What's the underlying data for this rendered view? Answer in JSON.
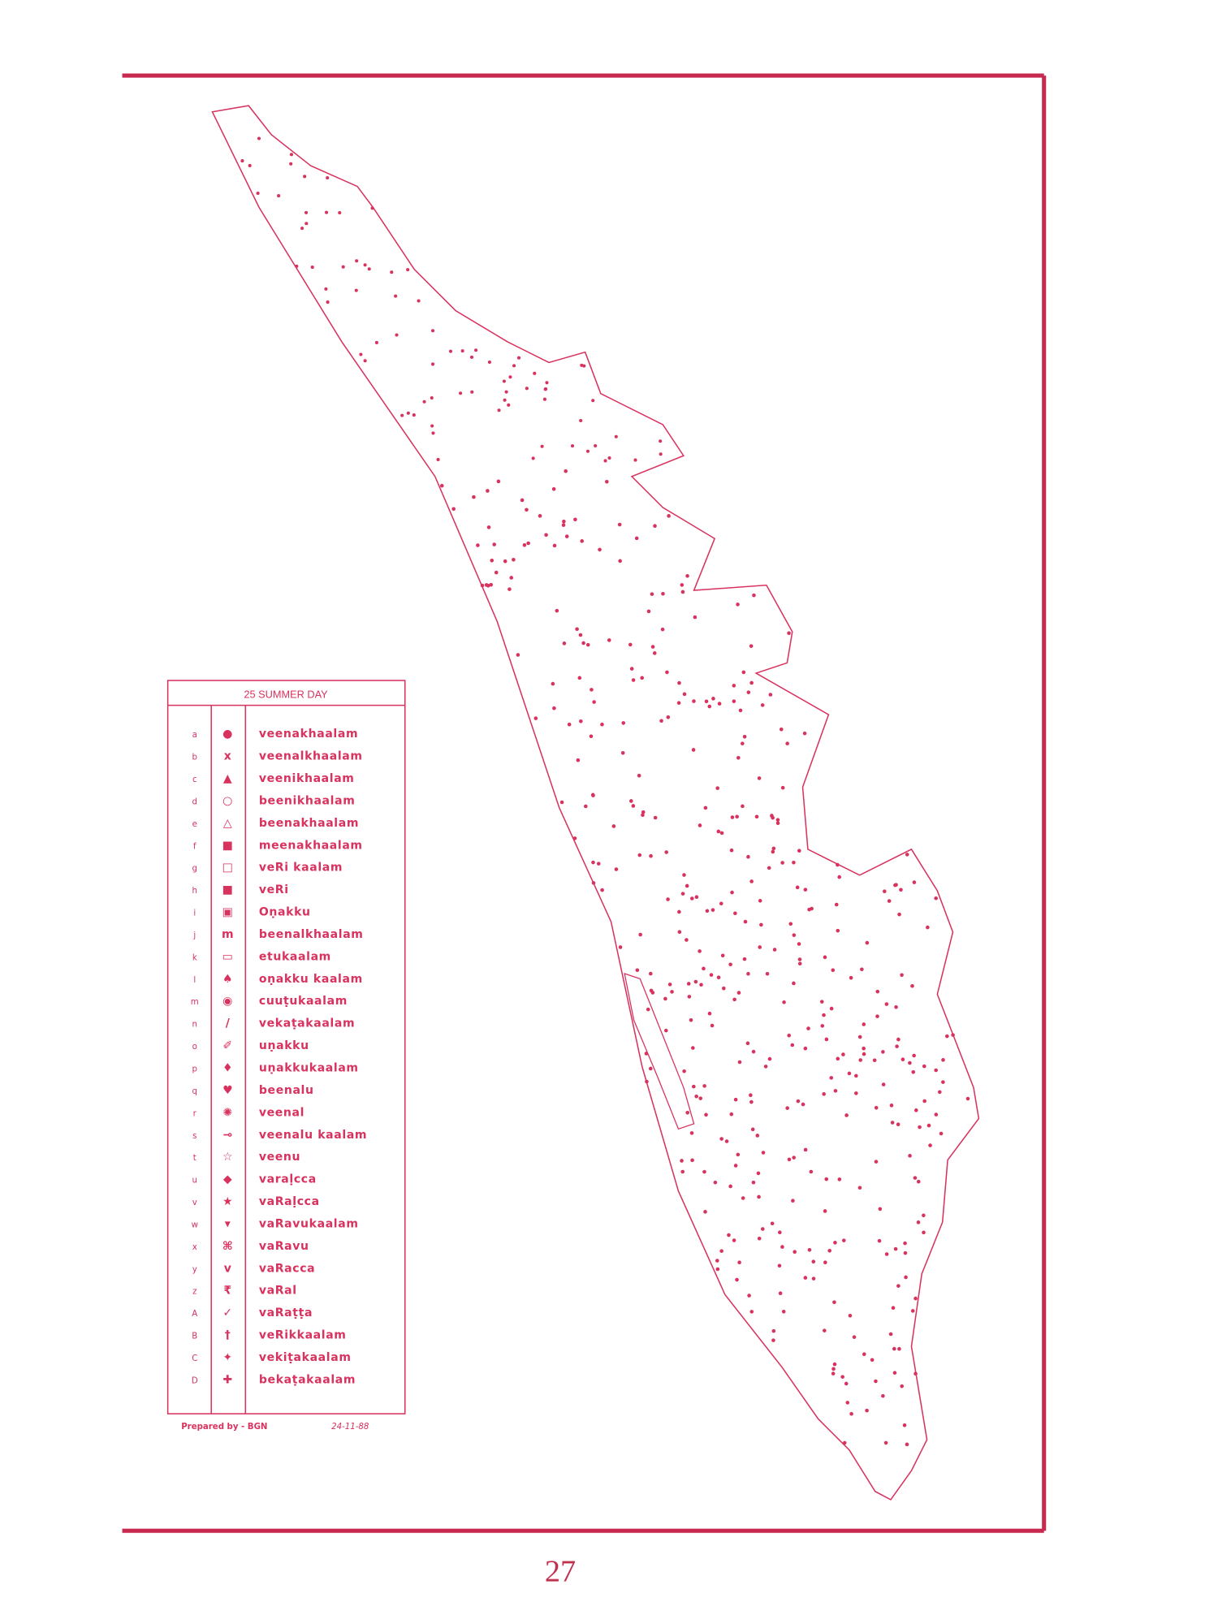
{
  "legend": {
    "title": "25 SUMMER DAY",
    "rows": [
      {
        "code": "a",
        "symbol": "●",
        "term": "veenakhaalam"
      },
      {
        "code": "b",
        "symbol": "x",
        "term": "veenalkhaalam"
      },
      {
        "code": "c",
        "symbol": "▲",
        "term": "veenikhaalam"
      },
      {
        "code": "d",
        "symbol": "○",
        "term": "beenikhaalam"
      },
      {
        "code": "e",
        "symbol": "△",
        "term": "beenakhaalam"
      },
      {
        "code": "f",
        "symbol": "■",
        "term": "meenakhaalam"
      },
      {
        "code": "g",
        "symbol": "□",
        "term": "veRi kaalam"
      },
      {
        "code": "h",
        "symbol": "■",
        "term": "veRi"
      },
      {
        "code": "i",
        "symbol": "▣",
        "term": "Oṇakku"
      },
      {
        "code": "j",
        "symbol": "m",
        "term": "beenalkhaalam"
      },
      {
        "code": "k",
        "symbol": "▭",
        "term": "etukaalam"
      },
      {
        "code": "l",
        "symbol": "♠",
        "term": "oṇakku kaalam"
      },
      {
        "code": "m",
        "symbol": "◉",
        "term": "cuuṭukaalam"
      },
      {
        "code": "n",
        "symbol": "/",
        "term": "vekaṭakaalam"
      },
      {
        "code": "o",
        "symbol": "✐",
        "term": "uṇakku"
      },
      {
        "code": "p",
        "symbol": "♦",
        "term": "uṇakkukaalam"
      },
      {
        "code": "q",
        "symbol": "♥",
        "term": "beenalu"
      },
      {
        "code": "r",
        "symbol": "✺",
        "term": "veenal"
      },
      {
        "code": "s",
        "symbol": "⊸",
        "term": "veenalu kaalam"
      },
      {
        "code": "t",
        "symbol": "☆",
        "term": "veenu"
      },
      {
        "code": "u",
        "symbol": "◆",
        "term": "varaḷcca"
      },
      {
        "code": "v",
        "symbol": "★",
        "term": "vaRaḷcca"
      },
      {
        "code": "w",
        "symbol": "▾",
        "term": "vaRavukaalam"
      },
      {
        "code": "x",
        "symbol": "⌘",
        "term": "vaRavu"
      },
      {
        "code": "y",
        "symbol": "v",
        "term": "vaRacca"
      },
      {
        "code": "z",
        "symbol": "₹",
        "term": "vaRal"
      },
      {
        "code": "A",
        "symbol": "✓",
        "term": "vaRaṭṭa"
      },
      {
        "code": "B",
        "symbol": "†",
        "term": "veRikkaalam"
      },
      {
        "code": "C",
        "symbol": "✦",
        "term": "vekiṭakaalam"
      },
      {
        "code": "D",
        "symbol": "✚",
        "term": "bekaṭakaalam"
      }
    ],
    "prepared_by": "Prepared by - BGN",
    "date": "24-11-88"
  },
  "page_number": "27",
  "colors": {
    "ink": "#d8325e",
    "frame": "#c8294f"
  }
}
